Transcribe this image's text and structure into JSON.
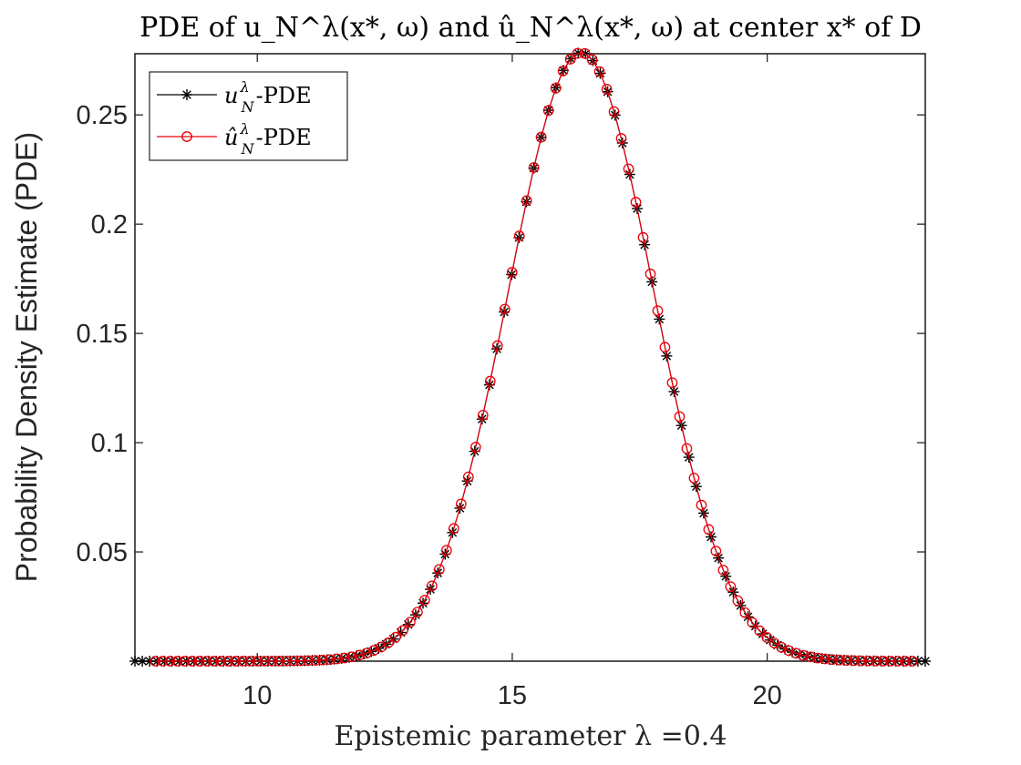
{
  "chart_data": {
    "type": "line",
    "title": "PDE of u_N^λ(x*, ω) and û_N^λ(x*, ω) at center x* of D",
    "xlabel": "Epistemic parameter λ =0.4",
    "ylabel": "Probability Density Estimate (PDE)",
    "xlim": [
      7.6,
      23.1
    ],
    "ylim": [
      0,
      0.278
    ],
    "xticks": [
      10,
      15,
      20
    ],
    "yticks": [
      0.05,
      0.1,
      0.15,
      0.2,
      0.25
    ],
    "grid": false,
    "legend_position": "top-left",
    "curve": {
      "mean": 16.35,
      "sd": 1.43,
      "peak": 0.2785
    },
    "series": [
      {
        "name": "u_N^λ-PDE",
        "label_main": "u",
        "label_sup": "λ",
        "label_sub": "N",
        "label_suffix": "-PDE",
        "color": "#000000",
        "marker": "asterisk",
        "x_start": 7.6,
        "x_end": 23.1,
        "n_points": 108
      },
      {
        "name": "û_N^λ-PDE",
        "label_main": "û",
        "label_sup": "λ",
        "label_sub": "N",
        "label_suffix": "-PDE",
        "color": "#e8000b",
        "marker": "circle",
        "x_start": 8.0,
        "x_end": 22.85,
        "n_points": 105
      }
    ]
  }
}
